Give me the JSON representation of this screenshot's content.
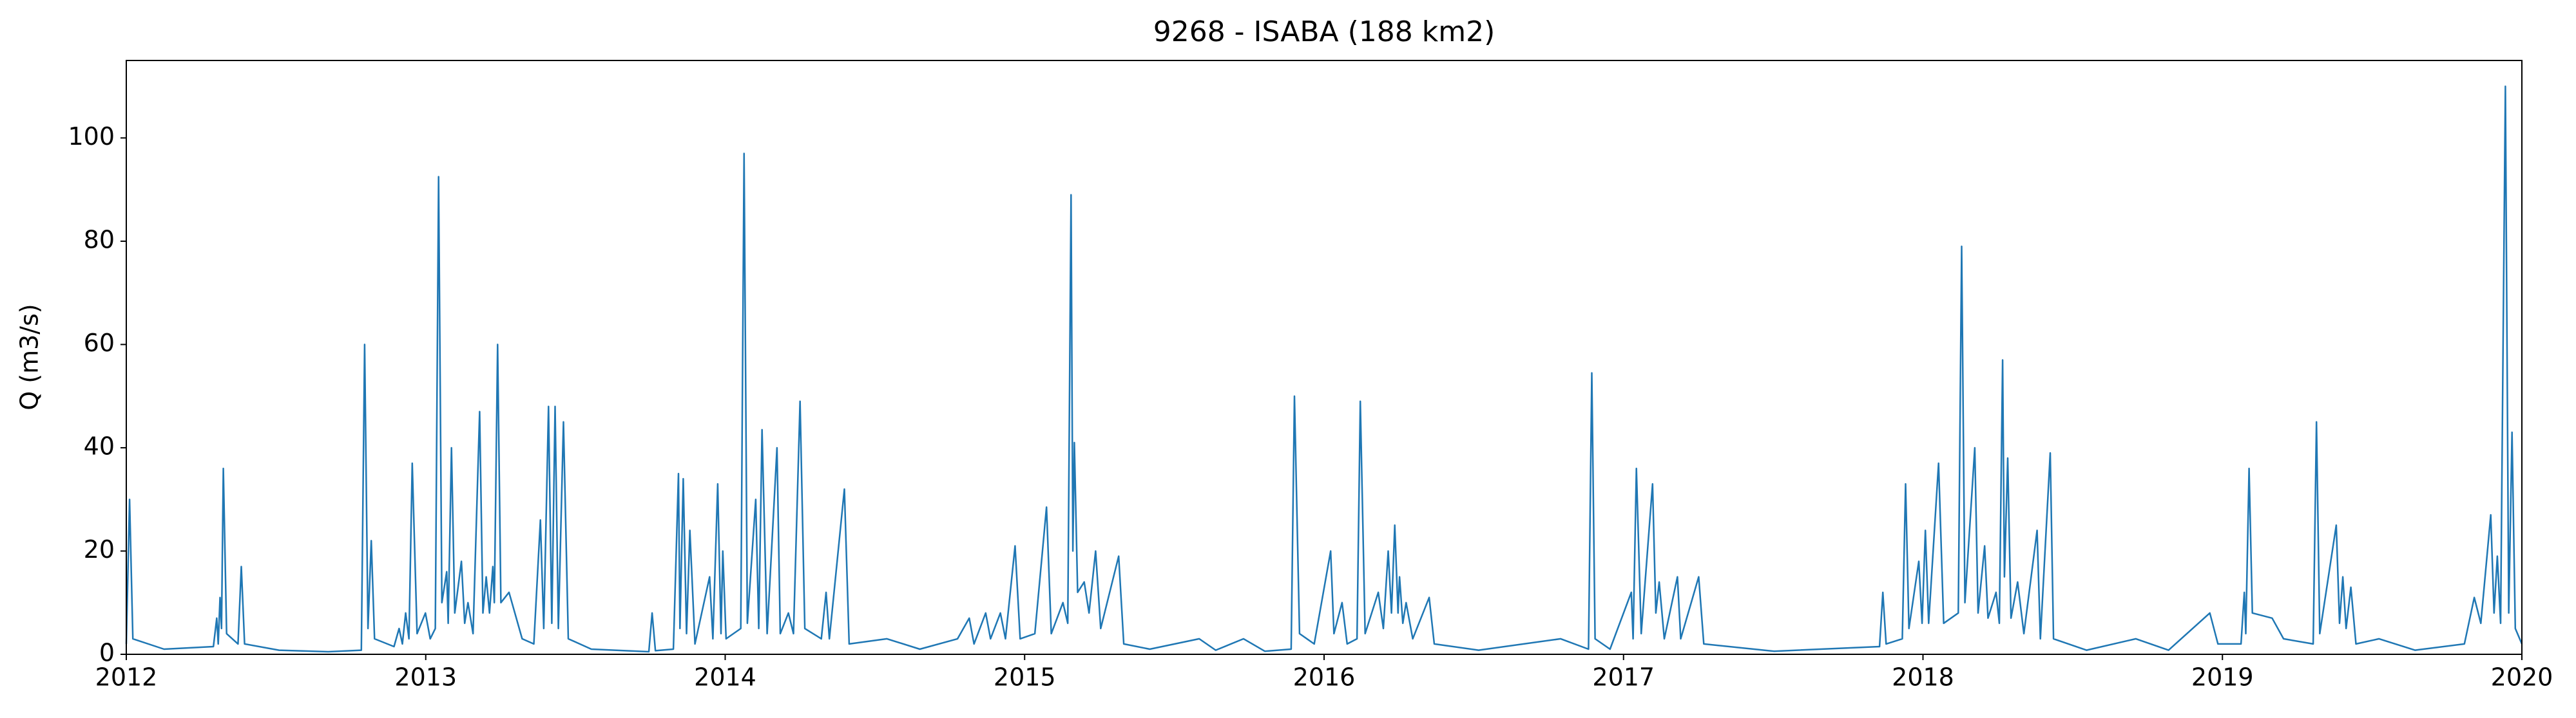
{
  "chart_data": {
    "type": "line",
    "title": "9268 - ISABA (188 km2)",
    "ylabel": "Q (m3/s)",
    "color": "#1f77b4",
    "x": [
      2012.0,
      2012.011,
      2012.022,
      2012.126,
      2012.291,
      2012.302,
      2012.307,
      2012.313,
      2012.318,
      2012.324,
      2012.335,
      2012.373,
      2012.384,
      2012.395,
      2012.51,
      2012.675,
      2012.785,
      2012.796,
      2012.807,
      2012.818,
      2012.829,
      2012.894,
      2012.911,
      2012.922,
      2012.933,
      2012.944,
      2012.955,
      2012.971,
      2012.999,
      2013.015,
      2013.032,
      2013.043,
      2013.054,
      2013.07,
      2013.075,
      2013.086,
      2013.097,
      2013.119,
      2013.13,
      2013.141,
      2013.158,
      2013.18,
      2013.191,
      2013.202,
      2013.213,
      2013.224,
      2013.229,
      2013.24,
      2013.251,
      2013.278,
      2013.322,
      2013.361,
      2013.383,
      2013.394,
      2013.41,
      2013.421,
      2013.432,
      2013.443,
      2013.46,
      2013.476,
      2013.553,
      2013.745,
      2013.756,
      2013.767,
      2013.827,
      2013.844,
      2013.849,
      2013.86,
      2013.871,
      2013.882,
      2013.899,
      2013.948,
      2013.959,
      2013.975,
      2013.986,
      2013.992,
      2014.003,
      2014.052,
      2014.063,
      2014.074,
      2014.102,
      2014.112,
      2014.123,
      2014.14,
      2014.173,
      2014.184,
      2014.211,
      2014.228,
      2014.25,
      2014.266,
      2014.321,
      2014.337,
      2014.348,
      2014.398,
      2014.414,
      2014.54,
      2014.65,
      2014.776,
      2014.815,
      2014.831,
      2014.87,
      2014.886,
      2014.919,
      2014.936,
      2014.968,
      2014.985,
      2015.034,
      2015.073,
      2015.089,
      2015.128,
      2015.144,
      2015.155,
      2015.161,
      2015.166,
      2015.177,
      2015.199,
      2015.215,
      2015.237,
      2015.254,
      2015.314,
      2015.331,
      2015.418,
      2015.583,
      2015.638,
      2015.731,
      2015.802,
      2015.89,
      2015.901,
      2015.918,
      2015.967,
      2016.022,
      2016.033,
      2016.06,
      2016.077,
      2016.11,
      2016.121,
      2016.137,
      2016.181,
      2016.198,
      2016.214,
      2016.225,
      2016.236,
      2016.247,
      2016.252,
      2016.263,
      2016.274,
      2016.296,
      2016.351,
      2016.368,
      2016.516,
      2016.79,
      2016.883,
      2016.894,
      2016.905,
      2016.955,
      2017.026,
      2017.032,
      2017.043,
      2017.059,
      2017.097,
      2017.108,
      2017.119,
      2017.136,
      2017.18,
      2017.191,
      2017.251,
      2017.268,
      2017.503,
      2017.855,
      2017.866,
      2017.877,
      2017.931,
      2017.942,
      2017.953,
      2017.986,
      2017.997,
      2018.008,
      2018.019,
      2018.052,
      2018.069,
      2018.118,
      2018.129,
      2018.14,
      2018.173,
      2018.184,
      2018.206,
      2018.217,
      2018.244,
      2018.255,
      2018.266,
      2018.272,
      2018.283,
      2018.294,
      2018.316,
      2018.337,
      2018.381,
      2018.392,
      2018.425,
      2018.436,
      2018.546,
      2018.711,
      2018.82,
      2018.958,
      2018.985,
      2019.062,
      2019.073,
      2019.078,
      2019.089,
      2019.1,
      2019.166,
      2019.204,
      2019.303,
      2019.314,
      2019.325,
      2019.38,
      2019.391,
      2019.402,
      2019.413,
      2019.429,
      2019.446,
      2019.523,
      2019.643,
      2019.808,
      2019.841,
      2019.863,
      2019.896,
      2019.907,
      2019.918,
      2019.929,
      2019.945,
      2019.956,
      2019.967,
      2019.978,
      2020.0
    ],
    "values": [
      2,
      30,
      3,
      1,
      1.5,
      7,
      2,
      11,
      5,
      36,
      4,
      2,
      17,
      2,
      0.8,
      0.5,
      0.8,
      60,
      5,
      22,
      3,
      1.5,
      5,
      2,
      8,
      3,
      37,
      4,
      8,
      3,
      5,
      92.5,
      10,
      16,
      6,
      40,
      8,
      18,
      6,
      10,
      4,
      47,
      8,
      15,
      8,
      17,
      10,
      60,
      10,
      12,
      3,
      2,
      26,
      5,
      48,
      6,
      48,
      5,
      45,
      3,
      1,
      0.5,
      8,
      0.7,
      1,
      35,
      5,
      34,
      4,
      24,
      2,
      15,
      3,
      33,
      4,
      20,
      3,
      5,
      97,
      6,
      30,
      5,
      43.5,
      4,
      40,
      4,
      8,
      4,
      49,
      5,
      3,
      12,
      3,
      32,
      2,
      3,
      1,
      3,
      7,
      2,
      8,
      3,
      8,
      3,
      21,
      3,
      4,
      28.5,
      4,
      10,
      6,
      89,
      20,
      41,
      12,
      14,
      8,
      20,
      5,
      19,
      2,
      1,
      3,
      0.8,
      3,
      0.6,
      1,
      50,
      4,
      2,
      20,
      4,
      10,
      2,
      3,
      49,
      4,
      12,
      5,
      20,
      8,
      25,
      8,
      15,
      6,
      10,
      3,
      11,
      2,
      0.8,
      3,
      1,
      54.5,
      3,
      1,
      12,
      3,
      36,
      4,
      33,
      8,
      14,
      3,
      15,
      3,
      15,
      2,
      0.6,
      1.5,
      12,
      2,
      3,
      33,
      5,
      18,
      6,
      24,
      6,
      37,
      6,
      8,
      79,
      10,
      40,
      8,
      21,
      7,
      12,
      6,
      57,
      15,
      38,
      7,
      14,
      4,
      24,
      3,
      39,
      3,
      0.8,
      3,
      0.8,
      8,
      2,
      2,
      12,
      4,
      36,
      8,
      7,
      3,
      2,
      45,
      4,
      25,
      6,
      15,
      5,
      13,
      2,
      3,
      0.8,
      2,
      11,
      6,
      27,
      8,
      19,
      6,
      110,
      8,
      43,
      5,
      2
    ],
    "xlim": [
      2012,
      2020
    ],
    "xticks": [
      2012,
      2013,
      2014,
      2015,
      2016,
      2017,
      2018,
      2019,
      2020
    ],
    "ylim": [
      0,
      115
    ],
    "yticks": [
      0,
      20,
      40,
      60,
      80,
      100
    ],
    "grid": false
  }
}
